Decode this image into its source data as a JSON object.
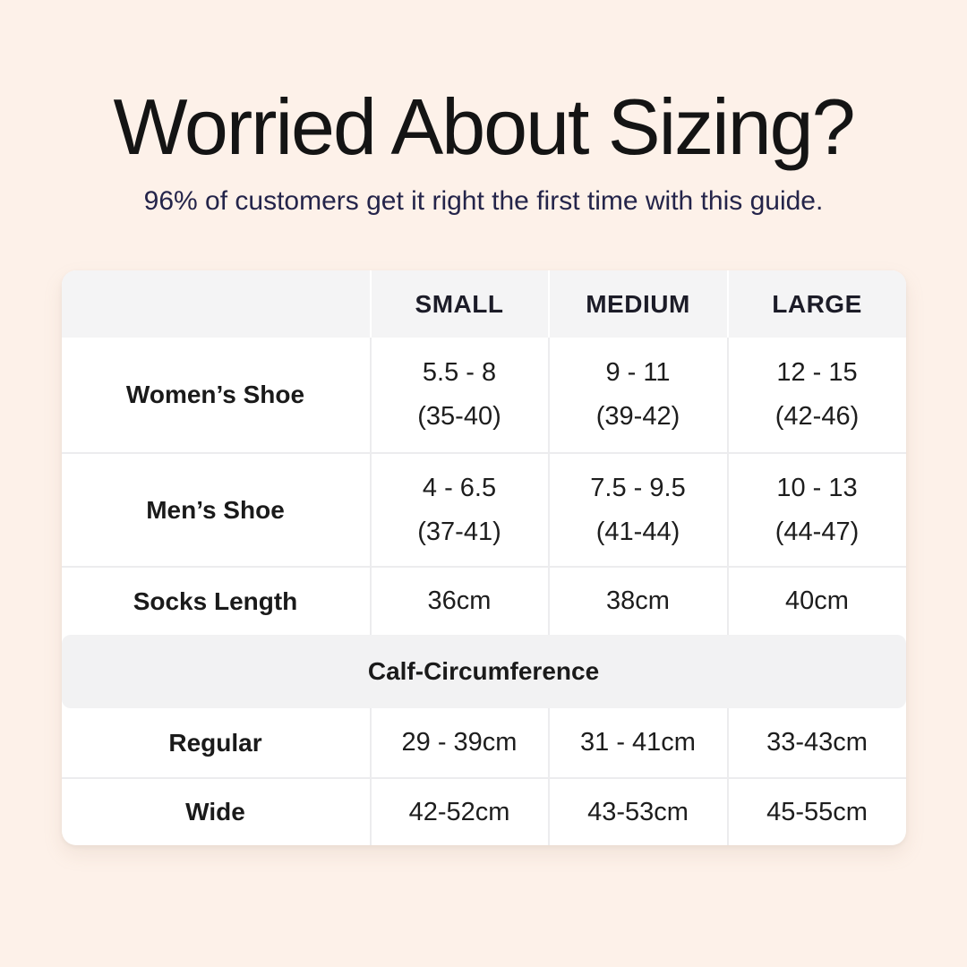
{
  "header": {
    "title": "Worried About Sizing?",
    "subtitle": "96% of customers get it right the first time with this guide."
  },
  "colors": {
    "page_background": "#fdf1e9",
    "title_text": "#141414",
    "subtitle_text": "#24244a",
    "table_background": "#ffffff",
    "table_header_background": "#f4f4f5",
    "section_band_background": "#f2f2f3",
    "divider": "#ececee",
    "cell_text": "#1d1d1d"
  },
  "size_chart": {
    "column_headers": [
      "SMALL",
      "MEDIUM",
      "LARGE"
    ],
    "rows": [
      {
        "label": "Women’s Shoe",
        "cells": [
          {
            "l1": "5.5 - 8",
            "l2": "(35-40)"
          },
          {
            "l1": "9 - 11",
            "l2": "(39-42)"
          },
          {
            "l1": "12 - 15",
            "l2": "(42-46)"
          }
        ]
      },
      {
        "label": "Men’s Shoe",
        "cells": [
          {
            "l1": "4 - 6.5",
            "l2": "(37-41)"
          },
          {
            "l1": "7.5 - 9.5",
            "l2": "(41-44)"
          },
          {
            "l1": "10 - 13",
            "l2": "(44-47)"
          }
        ]
      },
      {
        "label": "Socks Length",
        "cells": [
          {
            "l1": "36cm"
          },
          {
            "l1": "38cm"
          },
          {
            "l1": "40cm"
          }
        ]
      }
    ],
    "calf_section": {
      "title": "Calf-Circumference",
      "rows": [
        {
          "label": "Regular",
          "cells": [
            {
              "l1": "29 - 39cm"
            },
            {
              "l1": "31 - 41cm"
            },
            {
              "l1": "33-43cm"
            }
          ]
        },
        {
          "label": "Wide",
          "cells": [
            {
              "l1": "42-52cm"
            },
            {
              "l1": "43-53cm"
            },
            {
              "l1": "45-55cm"
            }
          ]
        }
      ]
    }
  }
}
